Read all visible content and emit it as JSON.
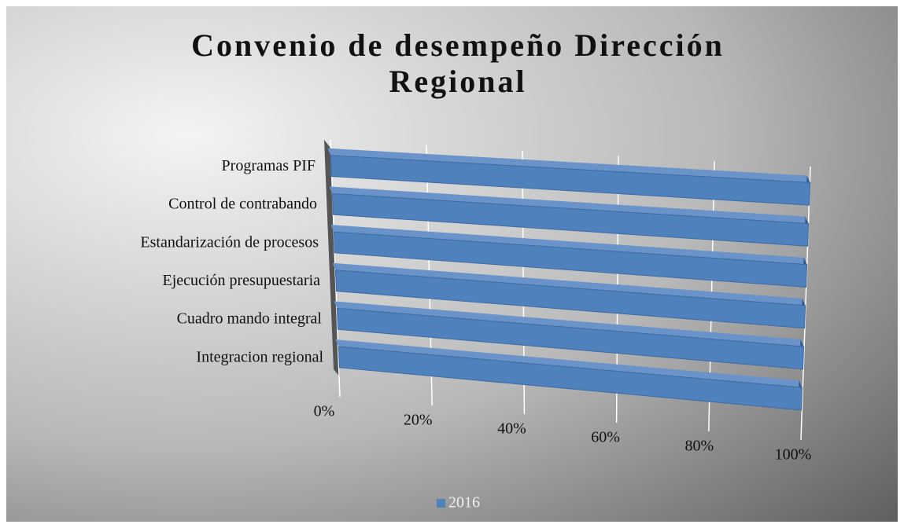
{
  "chart_data": {
    "type": "bar3d",
    "orientation": "horizontal",
    "title": "Convenio de desempeño Dirección Regional",
    "categories": [
      "Programas PIF",
      "Control de contrabando",
      "Estandarización de procesos",
      "Ejecución presupuestaria",
      "Cuadro mando integral",
      "Integracion regional"
    ],
    "series": [
      {
        "name": "2016",
        "color": "#4f81bd",
        "values": [
          100,
          100,
          100,
          100,
          100,
          100
        ]
      }
    ],
    "xlim": [
      0,
      100
    ],
    "xticks": [
      {
        "value": 0,
        "label": "0%"
      },
      {
        "value": 20,
        "label": "20%"
      },
      {
        "value": 40,
        "label": "40%"
      },
      {
        "value": 60,
        "label": "60%"
      },
      {
        "value": 80,
        "label": "80%"
      },
      {
        "value": 100,
        "label": "100%"
      }
    ],
    "grid": true,
    "legend": "bottom"
  }
}
